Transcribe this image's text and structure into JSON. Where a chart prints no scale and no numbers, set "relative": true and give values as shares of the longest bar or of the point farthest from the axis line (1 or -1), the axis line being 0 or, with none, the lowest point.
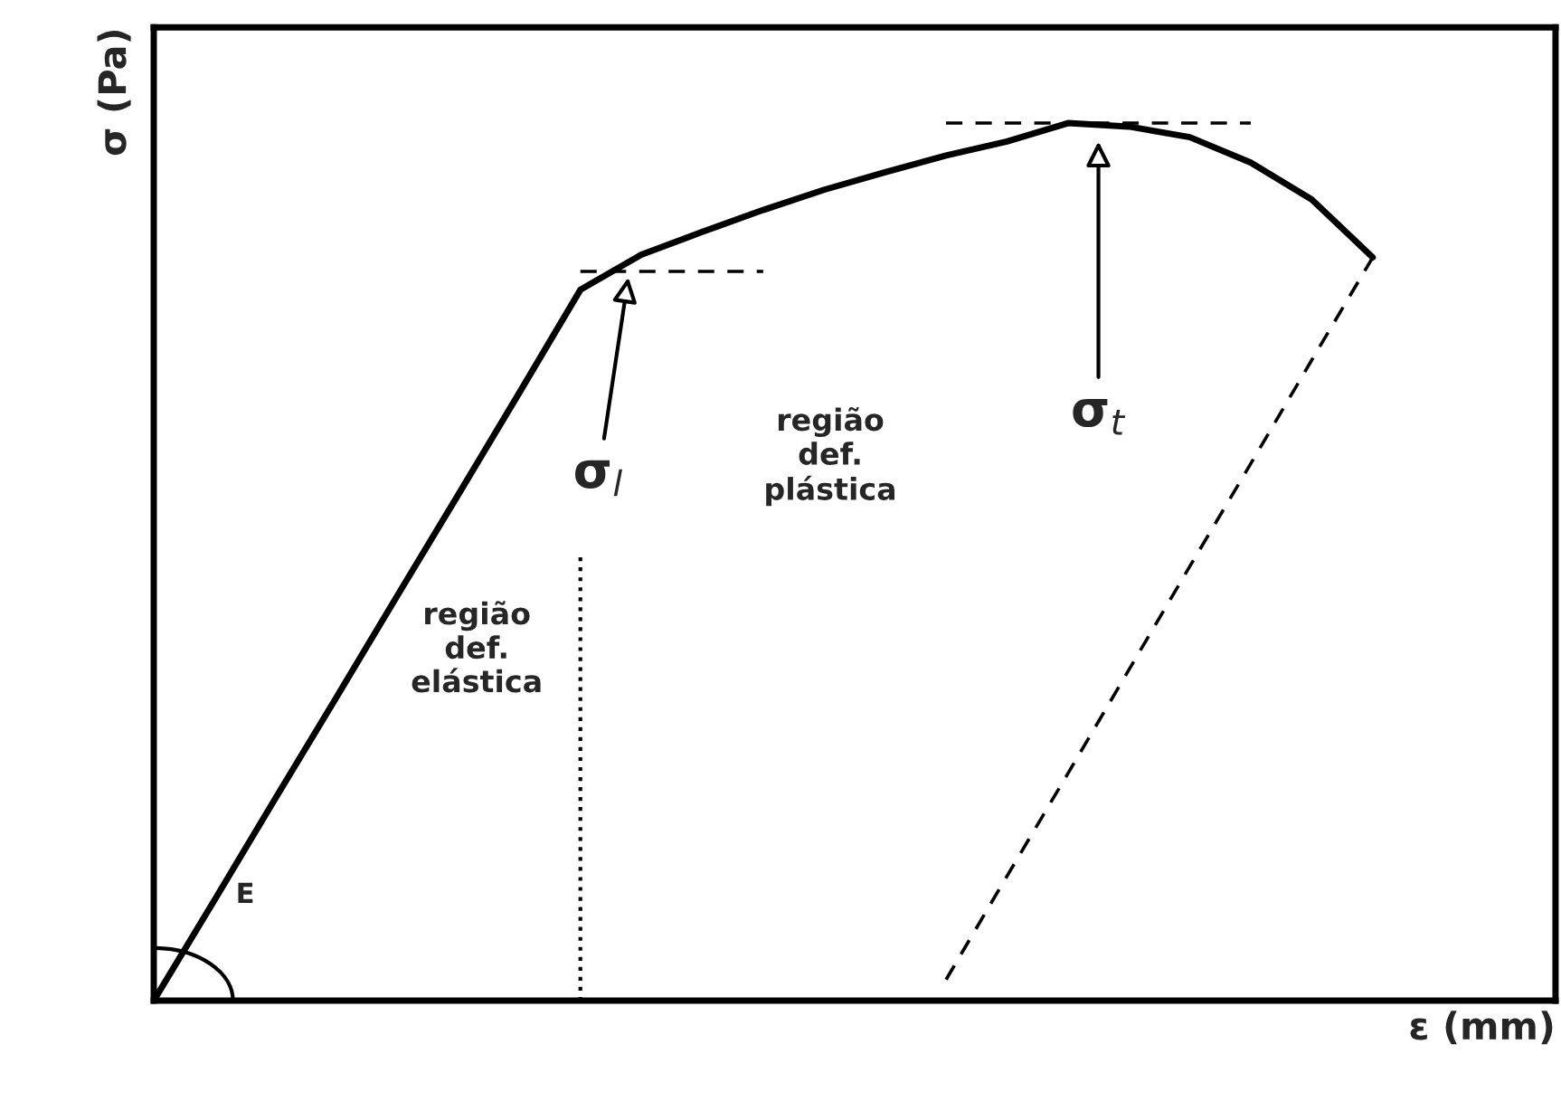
{
  "chart_data": {
    "type": "line",
    "relative": true,
    "xlabel": "ε (mm)",
    "ylabel": "σ (Pa)",
    "categories": [
      null,
      null,
      null,
      null,
      null,
      null,
      null,
      null,
      null,
      null,
      null,
      null,
      null,
      null,
      null,
      null,
      null,
      null,
      null,
      null,
      null,
      null,
      null,
      null
    ],
    "series": [
      {
        "color": "#000000",
        "line_style": "solid",
        "values": [
          0,
          0.115,
          0.231,
          0.346,
          0.462,
          0.577,
          0.693,
          0.81,
          0.85,
          0.876,
          0.901,
          0.924,
          0.944,
          0.963,
          0.979,
          1.0,
          0.996,
          0.984,
          0.955,
          0.913,
          0.847,
          null,
          null,
          null
        ]
      },
      {
        "color": "#000000",
        "line_style": "dashed",
        "values": [
          null,
          null,
          null,
          null,
          null,
          null,
          null,
          null,
          null,
          null,
          null,
          null,
          null,
          0.024,
          0.142,
          0.259,
          0.377,
          0.495,
          0.612,
          0.73,
          0.847,
          null,
          null,
          null
        ]
      },
      {
        "color": "#000000",
        "line_style": "dashed",
        "values": [
          null,
          null,
          null,
          null,
          null,
          null,
          null,
          0.831,
          0.831,
          0.831,
          0.831,
          null,
          null,
          null,
          null,
          null,
          null,
          null,
          null,
          null,
          null,
          null,
          null,
          null
        ]
      },
      {
        "color": "#000000",
        "line_style": "dashed",
        "values": [
          null,
          null,
          null,
          null,
          null,
          null,
          null,
          null,
          null,
          null,
          null,
          null,
          null,
          1.0,
          1.0,
          1.0,
          1.0,
          1.0,
          1.0,
          null,
          null,
          null,
          null,
          null
        ]
      }
    ],
    "annotations": [
      "σ$_{l}$",
      "σ$_{t}$",
      "E",
      "região\ndef.\nelástica",
      "região\ndef.\nplástica"
    ],
    "legend": false
  }
}
